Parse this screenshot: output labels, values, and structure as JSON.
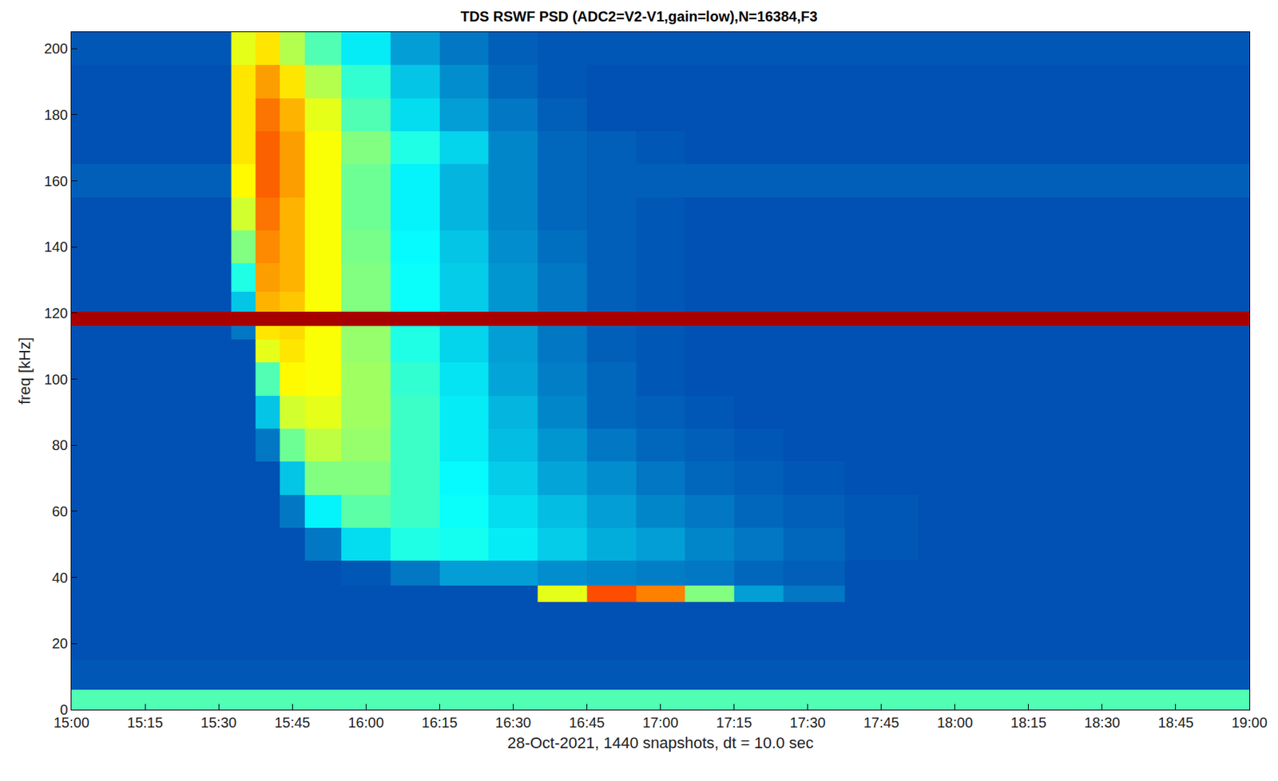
{
  "chart_data": {
    "type": "heatmap",
    "title": "TDS RSWF PSD (ADC2=V2-V1,gain=low),N=16384,F3",
    "x_label": "28-Oct-2021, 1440 snapshots, dt = 10.0 sec",
    "y_label": "freq [kHz]",
    "color": "Jet",
    "zlim": [
      0,
      10
    ],
    "xlim": [
      "2021-10-28 15:00",
      "2021-10-28 19:00"
    ],
    "ylim": [
      0,
      205
    ],
    "xticks": [
      {
        "value": "2021-10-28 15:00",
        "label": "15:00"
      },
      {
        "value": "2021-10-28 15:15",
        "label": "15:15"
      },
      {
        "value": "2021-10-28 15:30",
        "label": "15:30"
      },
      {
        "value": "2021-10-28 15:45",
        "label": "15:45"
      },
      {
        "value": "2021-10-28 16:00",
        "label": "16:00"
      },
      {
        "value": "2021-10-28 16:15",
        "label": "16:15"
      },
      {
        "value": "2021-10-28 16:30",
        "label": "16:30"
      },
      {
        "value": "2021-10-28 16:45",
        "label": "16:45"
      },
      {
        "value": "2021-10-28 17:00",
        "label": "17:00"
      },
      {
        "value": "2021-10-28 17:15",
        "label": "17:15"
      },
      {
        "value": "2021-10-28 17:30",
        "label": "17:30"
      },
      {
        "value": "2021-10-28 17:45",
        "label": "17:45"
      },
      {
        "value": "2021-10-28 18:00",
        "label": "18:00"
      },
      {
        "value": "2021-10-28 18:15",
        "label": "18:15"
      },
      {
        "value": "2021-10-28 18:30",
        "label": "18:30"
      },
      {
        "value": "2021-10-28 18:45",
        "label": "18:45"
      },
      {
        "value": "2021-10-28 19:00",
        "label": "19:00"
      }
    ],
    "yticks": [
      0,
      20,
      40,
      60,
      80,
      100,
      120,
      140,
      160,
      180,
      200
    ],
    "x": [
      "2021-10-28 15:00",
      "2021-10-28 15:10",
      "2021-10-28 15:20",
      "2021-10-28 15:30",
      "2021-10-28 15:35",
      "2021-10-28 15:40",
      "2021-10-28 15:45",
      "2021-10-28 15:50",
      "2021-10-28 16:00",
      "2021-10-28 16:10",
      "2021-10-28 16:20",
      "2021-10-28 16:30",
      "2021-10-28 16:40",
      "2021-10-28 16:50",
      "2021-10-28 17:00",
      "2021-10-28 17:10",
      "2021-10-28 17:20",
      "2021-10-28 17:30",
      "2021-10-28 17:45",
      "2021-10-28 18:00",
      "2021-10-28 18:15",
      "2021-10-28 18:30",
      "2021-10-28 18:45",
      "2021-10-28 19:00"
    ],
    "y": [
      2,
      10,
      20,
      30,
      35,
      40,
      50,
      60,
      70,
      80,
      90,
      100,
      110,
      114,
      118,
      123,
      130,
      140,
      150,
      160,
      170,
      180,
      190,
      200
    ],
    "z": [
      [
        4.5,
        4.5,
        4.5,
        4.5,
        4.5,
        4.5,
        4.5,
        4.5,
        4.5,
        4.5,
        4.5,
        4.5,
        4.5,
        4.5,
        4.5,
        4.5,
        4.5,
        4.5,
        4.5,
        4.5,
        4.5,
        4.5,
        4.5,
        4.5
      ],
      [
        1.6,
        1.6,
        1.6,
        1.6,
        1.6,
        1.6,
        1.6,
        1.6,
        1.6,
        1.6,
        1.6,
        1.6,
        1.6,
        1.6,
        1.6,
        1.6,
        1.6,
        1.6,
        1.6,
        1.6,
        1.6,
        1.6,
        1.6,
        1.6
      ],
      [
        1.5,
        1.5,
        1.5,
        1.5,
        1.5,
        1.5,
        1.5,
        1.5,
        1.5,
        1.5,
        1.5,
        1.5,
        1.5,
        1.5,
        1.5,
        1.5,
        1.5,
        1.5,
        1.5,
        1.5,
        1.5,
        1.5,
        1.5,
        1.5
      ],
      [
        1.5,
        1.5,
        1.5,
        1.5,
        1.5,
        1.5,
        1.5,
        1.5,
        1.5,
        1.5,
        1.5,
        1.5,
        1.5,
        1.5,
        1.5,
        1.5,
        1.5,
        1.5,
        1.5,
        1.5,
        1.5,
        1.5,
        1.5,
        1.5
      ],
      [
        1.5,
        1.5,
        1.5,
        1.5,
        1.5,
        1.5,
        1.5,
        1.5,
        1.5,
        1.5,
        1.5,
        1.5,
        6,
        8,
        7.5,
        5,
        2.5,
        2,
        1.5,
        1.5,
        1.5,
        1.5,
        1.5,
        1.5
      ],
      [
        1.5,
        1.5,
        1.5,
        1.5,
        1.5,
        1.5,
        1.5,
        1.5,
        1.6,
        2,
        2.5,
        2.5,
        2.3,
        2.2,
        2.1,
        2,
        1.8,
        1.7,
        1.5,
        1.5,
        1.5,
        1.5,
        1.5,
        1.5
      ],
      [
        1.5,
        1.5,
        1.5,
        1.5,
        1.5,
        1.5,
        1.5,
        2,
        3.3,
        4,
        3.9,
        3.5,
        3.1,
        2.7,
        2.5,
        2.2,
        2,
        1.8,
        1.6,
        1.5,
        1.5,
        1.5,
        1.5,
        1.5
      ],
      [
        1.5,
        1.5,
        1.5,
        1.5,
        1.5,
        1.5,
        2,
        3.6,
        4.6,
        4.3,
        3.8,
        3.3,
        2.9,
        2.5,
        2.2,
        2,
        1.8,
        1.7,
        1.6,
        1.5,
        1.5,
        1.5,
        1.5,
        1.5
      ],
      [
        1.5,
        1.5,
        1.5,
        1.5,
        1.5,
        1.5,
        3,
        5,
        5,
        4.3,
        3.7,
        3.1,
        2.6,
        2.3,
        2,
        1.8,
        1.7,
        1.6,
        1.5,
        1.5,
        1.5,
        1.5,
        1.5,
        1.5
      ],
      [
        1.5,
        1.5,
        1.5,
        1.5,
        1.5,
        2,
        4.8,
        5.6,
        5.2,
        4.3,
        3.5,
        2.9,
        2.4,
        2,
        1.8,
        1.7,
        1.6,
        1.5,
        1.5,
        1.5,
        1.5,
        1.5,
        1.5,
        1.5
      ],
      [
        1.5,
        1.5,
        1.5,
        1.5,
        1.5,
        3,
        5.8,
        6,
        5.3,
        4.3,
        3.5,
        2.8,
        2.2,
        1.8,
        1.7,
        1.6,
        1.5,
        1.5,
        1.5,
        1.5,
        1.5,
        1.5,
        1.5,
        1.5
      ],
      [
        1.5,
        1.5,
        1.5,
        1.5,
        1.5,
        4.5,
        6.3,
        6.2,
        5.3,
        4.2,
        3.4,
        2.6,
        2.1,
        1.8,
        1.6,
        1.5,
        1.5,
        1.5,
        1.5,
        1.5,
        1.5,
        1.5,
        1.5,
        1.5
      ],
      [
        1.5,
        1.5,
        1.5,
        1.5,
        1.5,
        6,
        6.5,
        6.2,
        5.2,
        4,
        3.2,
        2.5,
        2,
        1.7,
        1.6,
        1.5,
        1.5,
        1.5,
        1.5,
        1.5,
        1.5,
        1.5,
        1.5,
        1.5
      ],
      [
        1.5,
        1.5,
        1.5,
        1.5,
        2,
        6.5,
        6.6,
        6.2,
        5.2,
        4,
        3.2,
        2.5,
        2,
        1.7,
        1.6,
        1.5,
        1.5,
        1.5,
        1.5,
        1.5,
        1.5,
        1.5,
        1.5,
        1.5
      ],
      [
        9.6,
        9.6,
        9.6,
        9.6,
        9.6,
        9.6,
        9.6,
        9.6,
        9.6,
        9.6,
        9.6,
        9.6,
        9.6,
        9.6,
        9.6,
        9.6,
        9.6,
        9.6,
        9.6,
        9.6,
        9.6,
        9.6,
        9.6,
        9.6
      ],
      [
        1.5,
        1.5,
        1.5,
        1.5,
        3,
        7,
        6.8,
        6.2,
        5,
        3.8,
        3.1,
        2.4,
        2,
        1.7,
        1.6,
        1.5,
        1.5,
        1.5,
        1.5,
        1.5,
        1.5,
        1.5,
        1.5,
        1.5
      ],
      [
        1.5,
        1.5,
        1.5,
        1.5,
        4,
        7.2,
        7,
        6.2,
        5,
        3.8,
        3.1,
        2.4,
        2,
        1.7,
        1.6,
        1.5,
        1.5,
        1.5,
        1.5,
        1.5,
        1.5,
        1.5,
        1.5,
        1.5
      ],
      [
        1.5,
        1.5,
        1.5,
        1.5,
        5,
        7.4,
        7,
        6.2,
        4.9,
        3.7,
        3,
        2.3,
        1.9,
        1.7,
        1.6,
        1.5,
        1.5,
        1.5,
        1.5,
        1.5,
        1.5,
        1.5,
        1.5,
        1.5
      ],
      [
        1.5,
        1.5,
        1.5,
        1.5,
        5.8,
        7.6,
        7,
        6.2,
        4.8,
        3.6,
        2.8,
        2.2,
        1.8,
        1.7,
        1.6,
        1.5,
        1.5,
        1.5,
        1.5,
        1.5,
        1.5,
        1.5,
        1.5,
        1.5
      ],
      [
        1.7,
        1.7,
        1.7,
        1.7,
        6.3,
        7.8,
        7.2,
        6.2,
        4.8,
        3.6,
        2.8,
        2.2,
        1.8,
        1.7,
        1.7,
        1.7,
        1.7,
        1.7,
        1.7,
        1.7,
        1.7,
        1.7,
        1.7,
        1.7
      ],
      [
        1.5,
        1.5,
        1.5,
        1.5,
        6.5,
        7.8,
        7.2,
        6.2,
        5,
        4,
        3.2,
        2.2,
        1.8,
        1.7,
        1.6,
        1.5,
        1.5,
        1.5,
        1.5,
        1.5,
        1.5,
        1.5,
        1.5,
        1.5
      ],
      [
        1.5,
        1.5,
        1.5,
        1.5,
        6.5,
        7.6,
        7,
        6,
        4.5,
        3.3,
        2.5,
        2,
        1.7,
        1.5,
        1.5,
        1.5,
        1.5,
        1.5,
        1.5,
        1.5,
        1.5,
        1.5,
        1.5,
        1.5
      ],
      [
        1.5,
        1.5,
        1.5,
        1.5,
        6.5,
        7.2,
        6.5,
        5.5,
        4.2,
        3,
        2.3,
        1.8,
        1.6,
        1.5,
        1.5,
        1.5,
        1.5,
        1.5,
        1.5,
        1.5,
        1.5,
        1.5,
        1.5,
        1.5
      ],
      [
        1.6,
        1.6,
        1.6,
        1.6,
        6,
        6.5,
        5.5,
        4.5,
        3.5,
        2.5,
        2,
        1.7,
        1.6,
        1.6,
        1.6,
        1.6,
        1.6,
        1.6,
        1.6,
        1.6,
        1.6,
        1.6,
        1.6,
        1.6
      ]
    ]
  }
}
